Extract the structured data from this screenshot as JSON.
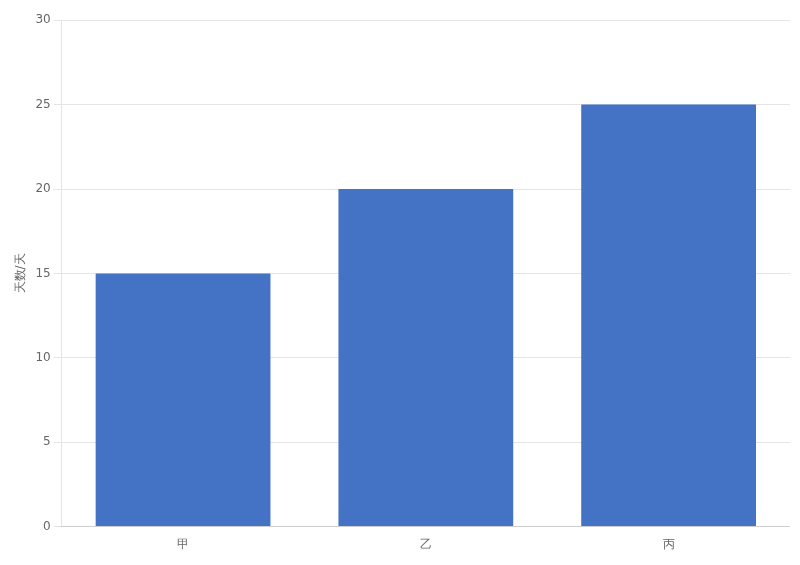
{
  "chart_data": {
    "type": "bar",
    "categories": [
      "甲",
      "乙",
      "丙"
    ],
    "values": [
      15,
      20,
      25
    ],
    "color": "#4472C4",
    "ylabel": "天数/天",
    "ylim": [
      0,
      30
    ],
    "yticks": [
      0,
      5,
      10,
      15,
      20,
      25,
      30
    ],
    "grid": true
  }
}
